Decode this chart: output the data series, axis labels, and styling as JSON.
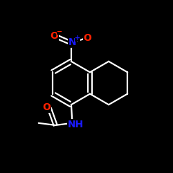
{
  "bg_color": "#000000",
  "bond_color": "#ffffff",
  "bond_width": 1.6,
  "O_color": "#ff2200",
  "N_color": "#1a1aff",
  "font_size": 10,
  "font_size_super": 7,
  "fig_size": [
    2.5,
    2.5
  ],
  "dpi": 100,
  "xlim": [
    0,
    10
  ],
  "ylim": [
    0,
    10
  ]
}
